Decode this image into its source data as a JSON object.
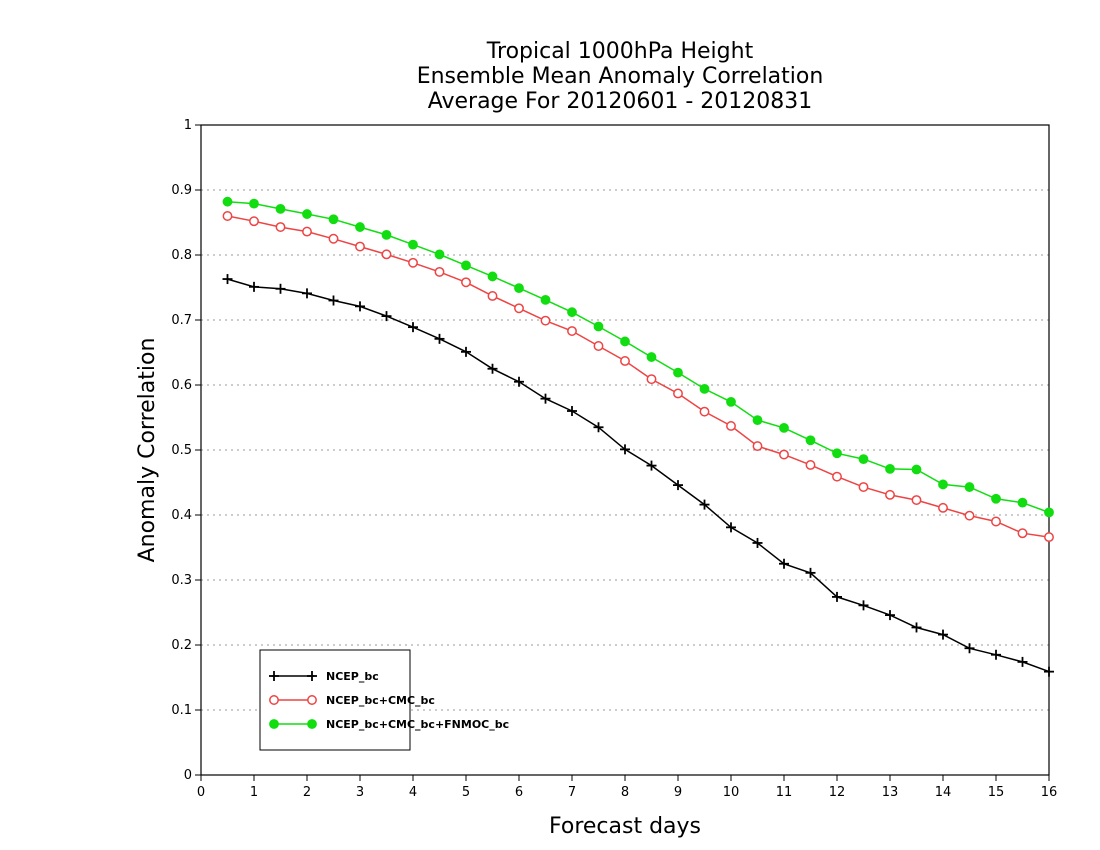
{
  "chart_data": {
    "type": "line",
    "title_lines": [
      "Tropical 1000hPa Height",
      "Ensemble Mean Anomaly Correlation",
      "Average For 20120601 - 20120831"
    ],
    "xlabel": "Forecast days",
    "ylabel": "Anomaly Correlation",
    "xlim": [
      0,
      16
    ],
    "ylim": [
      0,
      1
    ],
    "x_ticks": [
      "0",
      "1",
      "2",
      "3",
      "4",
      "5",
      "6",
      "7",
      "8",
      "9",
      "10",
      "11",
      "12",
      "13",
      "14",
      "15",
      "16"
    ],
    "y_ticks": [
      "0",
      "0.1",
      "0.2",
      "0.3",
      "0.4",
      "0.5",
      "0.6",
      "0.7",
      "0.8",
      "0.9",
      "1"
    ],
    "grid": true,
    "legend_position": "bottom-left",
    "x": [
      0.5,
      1,
      1.5,
      2,
      2.5,
      3,
      3.5,
      4,
      4.5,
      5,
      5.5,
      6,
      6.5,
      7,
      7.5,
      8,
      8.5,
      9,
      9.5,
      10,
      10.5,
      11,
      11.5,
      12,
      12.5,
      13,
      13.5,
      14,
      14.5,
      15,
      15.5,
      16
    ],
    "series": [
      {
        "name": "NCEP_bc",
        "color": "#000000",
        "marker": "plus",
        "values": [
          0.763,
          0.751,
          0.748,
          0.741,
          0.73,
          0.721,
          0.706,
          0.689,
          0.671,
          0.651,
          0.625,
          0.605,
          0.579,
          0.56,
          0.535,
          0.501,
          0.476,
          0.446,
          0.416,
          0.381,
          0.357,
          0.325,
          0.311,
          0.274,
          0.261,
          0.246,
          0.227,
          0.216,
          0.195,
          0.185,
          0.174,
          0.159
        ]
      },
      {
        "name": "NCEP_bc+CMC_bc",
        "color": "#ee4444",
        "marker": "open-circle",
        "values": [
          0.86,
          0.852,
          0.843,
          0.836,
          0.825,
          0.813,
          0.801,
          0.788,
          0.774,
          0.758,
          0.737,
          0.718,
          0.699,
          0.683,
          0.66,
          0.637,
          0.609,
          0.587,
          0.559,
          0.537,
          0.506,
          0.493,
          0.477,
          0.459,
          0.443,
          0.431,
          0.423,
          0.411,
          0.399,
          0.39,
          0.372,
          0.366
        ]
      },
      {
        "name": "NCEP_bc+CMC_bc+FNMOC_bc",
        "color": "#11dd11",
        "marker": "filled-circle",
        "values": [
          0.882,
          0.879,
          0.871,
          0.863,
          0.855,
          0.843,
          0.831,
          0.816,
          0.801,
          0.784,
          0.767,
          0.749,
          0.731,
          0.712,
          0.69,
          0.667,
          0.643,
          0.619,
          0.594,
          0.574,
          0.546,
          0.534,
          0.515,
          0.495,
          0.486,
          0.471,
          0.47,
          0.447,
          0.443,
          0.425,
          0.419,
          0.404
        ]
      }
    ]
  }
}
